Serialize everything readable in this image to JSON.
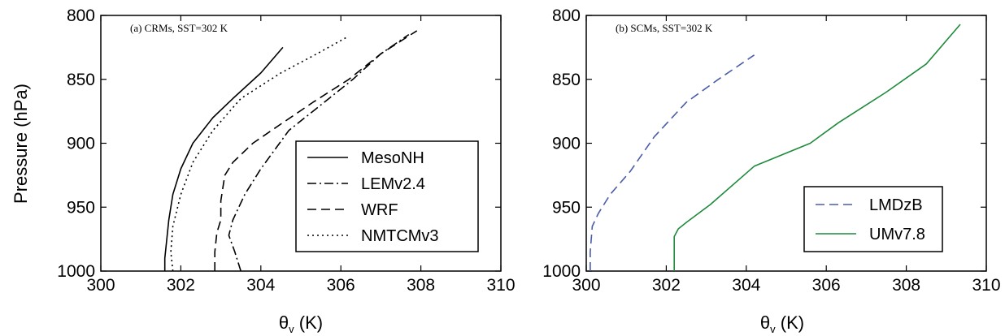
{
  "figure": {
    "ylabel": "Pressure (hPa)",
    "xlabel_symbol": "θ",
    "xlabel_sub": "v",
    "xlabel_unit": " (K)"
  },
  "chart_data": [
    {
      "type": "line",
      "title": "(a) CRMs, SST=302 K",
      "xlabel": "θv (K)",
      "ylabel": "Pressure (hPa)",
      "xlim": [
        300,
        310
      ],
      "ylim": [
        1000,
        800
      ],
      "y_inverted": true,
      "xticks": [
        300,
        302,
        304,
        306,
        308,
        310
      ],
      "yticks": [
        800,
        850,
        900,
        950,
        1000
      ],
      "legend_position": "lower-right",
      "series": [
        {
          "name": "MesoNH",
          "color": "#000000",
          "dash": "solid",
          "x": [
            301.6,
            301.6,
            301.7,
            301.8,
            302.0,
            302.3,
            302.8,
            303.3,
            304.0,
            304.55
          ],
          "y": [
            1000,
            990,
            960,
            940,
            920,
            900,
            880,
            865,
            845,
            825
          ]
        },
        {
          "name": "LEMv2.4",
          "color": "#000000",
          "dash": "dashdot",
          "x": [
            303.5,
            303.35,
            303.2,
            303.3,
            303.6,
            304.0,
            304.7,
            305.5,
            306.3,
            307.0,
            307.7
          ],
          "y": [
            1000,
            985,
            972,
            960,
            940,
            920,
            890,
            870,
            850,
            830,
            815
          ]
        },
        {
          "name": "WRF",
          "color": "#000000",
          "dash": "dashed",
          "x": [
            302.85,
            302.85,
            302.9,
            303.0,
            303.0,
            303.1,
            303.3,
            303.8,
            304.5,
            305.3,
            306.2,
            307.0,
            307.9
          ],
          "y": [
            1000,
            985,
            970,
            960,
            945,
            925,
            915,
            900,
            885,
            868,
            850,
            830,
            812
          ]
        },
        {
          "name": "NMTCMv3",
          "color": "#000000",
          "dash": "dotted",
          "x": [
            301.8,
            301.75,
            301.8,
            302.0,
            302.3,
            302.8,
            303.5,
            304.5,
            305.4,
            306.15
          ],
          "y": [
            1000,
            985,
            965,
            940,
            915,
            890,
            865,
            845,
            830,
            817
          ]
        }
      ]
    },
    {
      "type": "line",
      "title": "(b) SCMs, SST=302 K",
      "xlabel": "θv (K)",
      "ylabel": "",
      "xlim": [
        300,
        310
      ],
      "ylim": [
        1000,
        800
      ],
      "y_inverted": true,
      "xticks": [
        300,
        302,
        304,
        306,
        308,
        310
      ],
      "yticks": [
        800,
        850,
        900,
        950,
        1000
      ],
      "legend_position": "lower-right",
      "series": [
        {
          "name": "LMDzB",
          "color": "#4a5ca8",
          "dash": "dashed",
          "x": [
            300.1,
            300.1,
            300.15,
            300.3,
            300.6,
            301.1,
            301.7,
            302.5,
            303.3,
            304.2
          ],
          "y": [
            1000,
            985,
            965,
            955,
            940,
            922,
            895,
            868,
            850,
            831
          ]
        },
        {
          "name": "UMv7.8",
          "color": "#1f8a3c",
          "dash": "solid",
          "x": [
            302.2,
            302.2,
            302.2,
            302.3,
            302.5,
            303.1,
            304.2,
            305.6,
            306.3,
            307.5,
            308.5,
            309.35
          ],
          "y": [
            1000,
            985,
            973,
            967,
            962,
            948,
            918,
            900,
            884,
            860,
            838,
            807
          ]
        }
      ]
    }
  ]
}
